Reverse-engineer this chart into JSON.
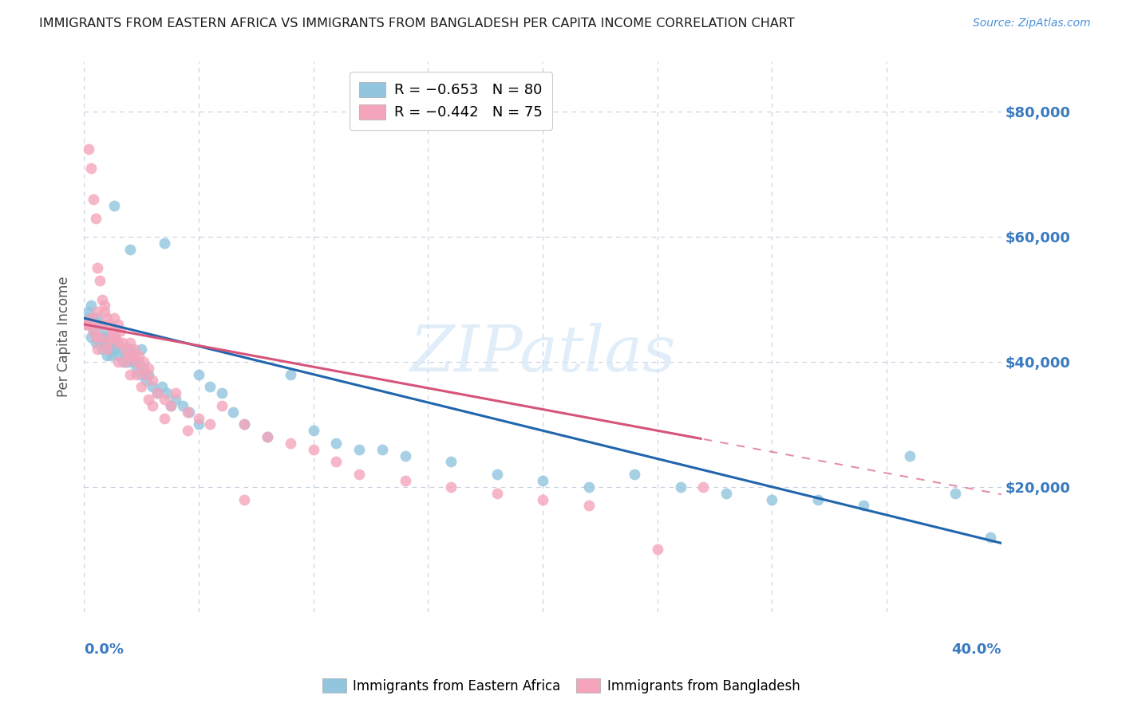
{
  "title": "IMMIGRANTS FROM EASTERN AFRICA VS IMMIGRANTS FROM BANGLADESH PER CAPITA INCOME CORRELATION CHART",
  "source": "Source: ZipAtlas.com",
  "ylabel": "Per Capita Income",
  "xlim": [
    0.0,
    0.4
  ],
  "ylim": [
    0,
    88000
  ],
  "color_blue": "#92c5de",
  "color_pink": "#f4a5bb",
  "line_blue": "#2166ac",
  "line_pink": "#d6547a",
  "watermark": "ZIPatlas",
  "blue_intercept": 47000,
  "blue_slope": -90000,
  "pink_intercept": 46000,
  "pink_slope": -68000,
  "blue_scatter_x": [
    0.001,
    0.002,
    0.002,
    0.003,
    0.003,
    0.003,
    0.004,
    0.004,
    0.005,
    0.005,
    0.006,
    0.006,
    0.007,
    0.007,
    0.008,
    0.008,
    0.009,
    0.009,
    0.01,
    0.01,
    0.011,
    0.011,
    0.012,
    0.012,
    0.013,
    0.013,
    0.014,
    0.015,
    0.015,
    0.016,
    0.017,
    0.018,
    0.019,
    0.02,
    0.021,
    0.022,
    0.023,
    0.024,
    0.025,
    0.026,
    0.027,
    0.028,
    0.03,
    0.032,
    0.034,
    0.036,
    0.038,
    0.04,
    0.043,
    0.046,
    0.05,
    0.055,
    0.06,
    0.065,
    0.07,
    0.08,
    0.09,
    0.1,
    0.11,
    0.12,
    0.13,
    0.14,
    0.16,
    0.18,
    0.2,
    0.22,
    0.24,
    0.26,
    0.28,
    0.3,
    0.32,
    0.34,
    0.36,
    0.38,
    0.395,
    0.013,
    0.02,
    0.025,
    0.035,
    0.05
  ],
  "blue_scatter_y": [
    46000,
    47000,
    48000,
    44000,
    46000,
    49000,
    45000,
    47000,
    43000,
    46000,
    44000,
    47000,
    43000,
    46000,
    44000,
    42000,
    45000,
    43000,
    41000,
    44000,
    42000,
    44000,
    43000,
    41000,
    42000,
    44000,
    43000,
    41000,
    43000,
    42000,
    40000,
    41000,
    40000,
    42000,
    40000,
    41000,
    39000,
    40000,
    38000,
    39000,
    37000,
    38000,
    36000,
    35000,
    36000,
    35000,
    33000,
    34000,
    33000,
    32000,
    38000,
    36000,
    35000,
    32000,
    30000,
    28000,
    38000,
    29000,
    27000,
    26000,
    26000,
    25000,
    24000,
    22000,
    21000,
    20000,
    22000,
    20000,
    19000,
    18000,
    18000,
    17000,
    25000,
    19000,
    12000,
    65000,
    58000,
    42000,
    59000,
    30000
  ],
  "pink_scatter_x": [
    0.001,
    0.002,
    0.002,
    0.003,
    0.003,
    0.004,
    0.004,
    0.005,
    0.005,
    0.006,
    0.006,
    0.007,
    0.007,
    0.008,
    0.008,
    0.009,
    0.01,
    0.01,
    0.011,
    0.012,
    0.012,
    0.013,
    0.014,
    0.015,
    0.015,
    0.016,
    0.017,
    0.018,
    0.019,
    0.02,
    0.021,
    0.022,
    0.023,
    0.024,
    0.025,
    0.026,
    0.027,
    0.028,
    0.03,
    0.032,
    0.035,
    0.038,
    0.04,
    0.045,
    0.05,
    0.055,
    0.06,
    0.07,
    0.08,
    0.09,
    0.1,
    0.11,
    0.12,
    0.14,
    0.16,
    0.18,
    0.2,
    0.22,
    0.25,
    0.27,
    0.006,
    0.01,
    0.015,
    0.02,
    0.025,
    0.03,
    0.009,
    0.004,
    0.012,
    0.018,
    0.023,
    0.028,
    0.035,
    0.045,
    0.07
  ],
  "pink_scatter_y": [
    46000,
    74000,
    46000,
    71000,
    47000,
    66000,
    45000,
    63000,
    44000,
    55000,
    42000,
    53000,
    44000,
    50000,
    46000,
    48000,
    47000,
    43000,
    46000,
    45000,
    44000,
    47000,
    44000,
    46000,
    43000,
    45000,
    43000,
    42000,
    41000,
    43000,
    41000,
    42000,
    40000,
    41000,
    39000,
    40000,
    38000,
    39000,
    37000,
    35000,
    34000,
    33000,
    35000,
    32000,
    31000,
    30000,
    33000,
    30000,
    28000,
    27000,
    26000,
    24000,
    22000,
    21000,
    20000,
    19000,
    18000,
    17000,
    10000,
    20000,
    48000,
    42000,
    40000,
    38000,
    36000,
    33000,
    49000,
    46000,
    44000,
    40000,
    38000,
    34000,
    31000,
    29000,
    18000
  ]
}
